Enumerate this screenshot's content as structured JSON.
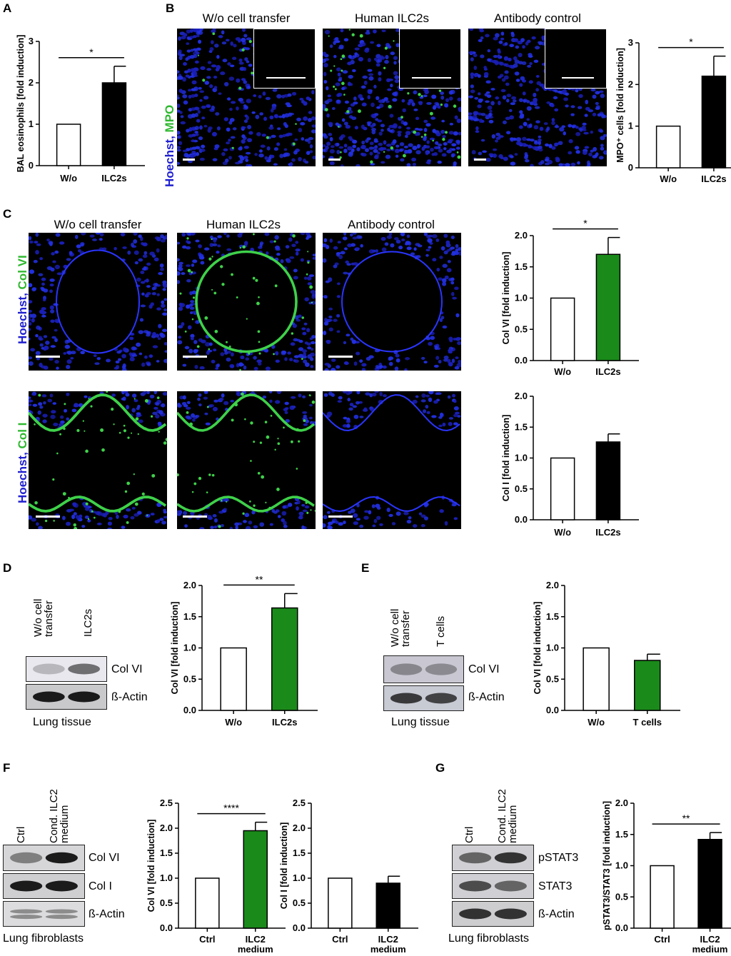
{
  "panels": {
    "A": "A",
    "B": "B",
    "C": "C",
    "D": "D",
    "E": "E",
    "F": "F",
    "G": "G"
  },
  "micro_titles": {
    "wo": "W/o cell transfer",
    "ilc2": "Human ILC2s",
    "ab": "Antibody control"
  },
  "stain": {
    "hoechst": "Hoechst,",
    "mpo": "MPO",
    "colvi": "Col VI",
    "coli": "Col I"
  },
  "blots": {
    "D": {
      "lanes": [
        "W/o cell transfer",
        "ILC2s"
      ],
      "lane1_lines": [
        "W/o cell",
        "transfer"
      ],
      "lane2": "ILC2s",
      "bands": [
        "Col VI",
        "ß-Actin"
      ],
      "caption": "Lung tissue"
    },
    "E": {
      "lane1_lines": [
        "W/o cell",
        "transfer"
      ],
      "lane2": "T cells",
      "bands": [
        "Col VI",
        "ß-Actin"
      ],
      "caption": "Lung tissue"
    },
    "F": {
      "lane1": "Ctrl",
      "lane2_lines": [
        "Cond. ILC2",
        "medium"
      ],
      "bands": [
        "Col VI",
        "Col I",
        "ß-Actin"
      ],
      "caption": "Lung fibroblasts"
    },
    "G": {
      "lane1": "Ctrl",
      "lane2_lines": [
        "Cond. ILC2",
        "medium"
      ],
      "bands": [
        "pSTAT3",
        "STAT3",
        "ß-Actin"
      ],
      "caption": "Lung fibroblasts"
    }
  },
  "colors": {
    "white_bar": "#ffffff",
    "black_bar": "#000000",
    "green_bar": "#1a8a1a",
    "nuclei": "#1a22d8",
    "stain_green": "#3fd14a"
  },
  "chart_data": [
    {
      "id": "A",
      "type": "bar",
      "categories": [
        "W/o",
        "ILC2s"
      ],
      "values": [
        1.0,
        2.0
      ],
      "errors": [
        0,
        0.4
      ],
      "ylabel": "BAL eosinophils [fold induction]",
      "ylim": [
        0,
        3
      ],
      "yticks": [
        "0",
        "1",
        "2",
        "3"
      ],
      "significance": "*",
      "colors": [
        "#ffffff",
        "#000000"
      ]
    },
    {
      "id": "B",
      "type": "bar",
      "categories": [
        "W/o",
        "ILC2s"
      ],
      "values": [
        1.0,
        2.2
      ],
      "errors": [
        0,
        0.48
      ],
      "ylabel": "MPO⁺ cells [fold induction]",
      "ylim": [
        0,
        3
      ],
      "yticks": [
        "0",
        "1",
        "2",
        "3"
      ],
      "significance": "*",
      "colors": [
        "#ffffff",
        "#000000"
      ]
    },
    {
      "id": "C-colvi",
      "type": "bar",
      "categories": [
        "W/o",
        "ILC2s"
      ],
      "values": [
        1.0,
        1.7
      ],
      "errors": [
        0,
        0.27
      ],
      "ylabel": "Col VI [fold induction]",
      "ylim": [
        0,
        2
      ],
      "yticks": [
        "0.0",
        "0.5",
        "1.0",
        "1.5",
        "2.0"
      ],
      "significance": "*",
      "colors": [
        "#ffffff",
        "#1a8a1a"
      ]
    },
    {
      "id": "C-coli",
      "type": "bar",
      "categories": [
        "W/o",
        "ILC2s"
      ],
      "values": [
        1.0,
        1.26
      ],
      "errors": [
        0,
        0.13
      ],
      "ylabel": "Col I [fold induction]",
      "ylim": [
        0,
        2
      ],
      "yticks": [
        "0.0",
        "0.5",
        "1.0",
        "1.5",
        "2.0"
      ],
      "significance": "",
      "colors": [
        "#ffffff",
        "#000000"
      ]
    },
    {
      "id": "D",
      "type": "bar",
      "categories": [
        "W/o",
        "ILC2s"
      ],
      "values": [
        1.0,
        1.64
      ],
      "errors": [
        0,
        0.23
      ],
      "ylabel": "Col VI [fold induction]",
      "ylim": [
        0,
        2
      ],
      "yticks": [
        "0.0",
        "0.5",
        "1.0",
        "1.5",
        "2.0"
      ],
      "significance": "**",
      "colors": [
        "#ffffff",
        "#1a8a1a"
      ]
    },
    {
      "id": "E",
      "type": "bar",
      "categories": [
        "W/o",
        "T cells"
      ],
      "values": [
        1.0,
        0.8
      ],
      "errors": [
        0,
        0.1
      ],
      "ylabel": "Col VI [fold induction]",
      "ylim": [
        0,
        2
      ],
      "yticks": [
        "0.0",
        "0.5",
        "1.0",
        "1.5",
        "2.0"
      ],
      "significance": "",
      "colors": [
        "#ffffff",
        "#1a8a1a"
      ]
    },
    {
      "id": "F-colvi",
      "type": "bar",
      "categories": [
        "Ctrl",
        "ILC2 medium"
      ],
      "values": [
        1.0,
        1.95
      ],
      "errors": [
        0,
        0.17
      ],
      "ylabel": "Col VI [fold induction]",
      "ylim": [
        0,
        2.5
      ],
      "yticks": [
        "0.0",
        "0.5",
        "1.0",
        "1.5",
        "2.0",
        "2.5"
      ],
      "significance": "****",
      "colors": [
        "#ffffff",
        "#1a8a1a"
      ]
    },
    {
      "id": "F-coli",
      "type": "bar",
      "categories": [
        "Ctrl",
        "ILC2 medium"
      ],
      "values": [
        1.0,
        0.9
      ],
      "errors": [
        0,
        0.14
      ],
      "ylabel": "Col I [fold induction]",
      "ylim": [
        0,
        2.5
      ],
      "yticks": [
        "0.0",
        "0.5",
        "1.0",
        "1.5",
        "2.0",
        "2.5"
      ],
      "significance": "",
      "colors": [
        "#ffffff",
        "#000000"
      ]
    },
    {
      "id": "G",
      "type": "bar",
      "categories": [
        "Ctrl",
        "ILC2 medium"
      ],
      "values": [
        1.0,
        1.42
      ],
      "errors": [
        0,
        0.11
      ],
      "ylabel": "pSTAT3/STAT3 [fold induction]",
      "ylim": [
        0,
        2
      ],
      "yticks": [
        "0.0",
        "0.5",
        "1.0",
        "1.5",
        "2.0"
      ],
      "significance": "**",
      "colors": [
        "#ffffff",
        "#000000"
      ]
    }
  ]
}
